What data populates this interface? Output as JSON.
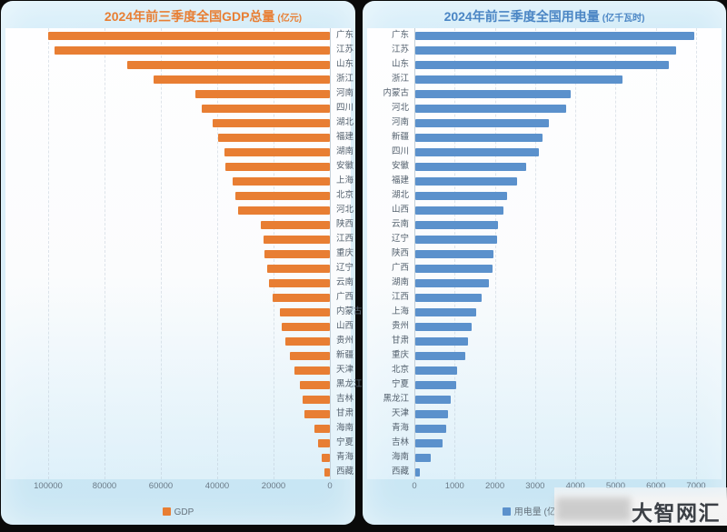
{
  "watermark": {
    "text": "大智网汇"
  },
  "chart_data": [
    {
      "type": "bar",
      "orientation": "horizontal",
      "title": "2024年前三季度全国GDP总量",
      "unit": "(亿元)",
      "legend": "GDP",
      "bar_color": "#e87e33",
      "title_color": "#e87e33",
      "axis_reversed": true,
      "xlim": [
        0,
        100000
      ],
      "x_ticks": [
        100000,
        80000,
        60000,
        40000,
        20000,
        0
      ],
      "grid": true,
      "legend_position": "bottom",
      "categories": [
        "广东",
        "江苏",
        "山东",
        "浙江",
        "河南",
        "四川",
        "湖北",
        "福建",
        "湖南",
        "安徽",
        "上海",
        "北京",
        "河北",
        "陕西",
        "江西",
        "重庆",
        "辽宁",
        "云南",
        "广西",
        "内蒙古",
        "山西",
        "贵州",
        "新疆",
        "天津",
        "黑龙江",
        "吉林",
        "甘肃",
        "海南",
        "宁夏",
        "青海",
        "西藏"
      ],
      "values": [
        99939,
        97744,
        71981,
        62618,
        47882,
        45442,
        41655,
        39775,
        37537,
        37257,
        34389,
        33462,
        32724,
        24542,
        23507,
        23244,
        22372,
        21651,
        20251,
        17832,
        17222,
        15735,
        14149,
        12674,
        10615,
        9817,
        8940,
        5595,
        4216,
        2804,
        1863
      ]
    },
    {
      "type": "bar",
      "orientation": "horizontal",
      "title": "2024年前三季度全国用电量",
      "unit": "(亿千瓦时)",
      "legend": "用电量 (亿千瓦时)",
      "bar_color": "#5b91cc",
      "title_color": "#4a85c4",
      "axis_reversed": false,
      "xlim": [
        0,
        7000
      ],
      "x_ticks": [
        0,
        1000,
        2000,
        3000,
        4000,
        5000,
        6000,
        7000
      ],
      "grid": true,
      "legend_position": "bottom",
      "categories": [
        "广东",
        "江苏",
        "山东",
        "浙江",
        "内蒙古",
        "河北",
        "河南",
        "新疆",
        "四川",
        "安徽",
        "福建",
        "湖北",
        "山西",
        "云南",
        "辽宁",
        "陕西",
        "广西",
        "湖南",
        "江西",
        "上海",
        "贵州",
        "甘肃",
        "重庆",
        "北京",
        "宁夏",
        "黑龙江",
        "天津",
        "青海",
        "吉林",
        "海南",
        "西藏"
      ],
      "values": [
        6940,
        6490,
        6300,
        5150,
        3850,
        3740,
        3330,
        3150,
        3060,
        2750,
        2520,
        2270,
        2200,
        2050,
        2030,
        1950,
        1930,
        1840,
        1650,
        1520,
        1400,
        1300,
        1240,
        1040,
        1010,
        880,
        805,
        770,
        680,
        375,
        110
      ]
    }
  ]
}
